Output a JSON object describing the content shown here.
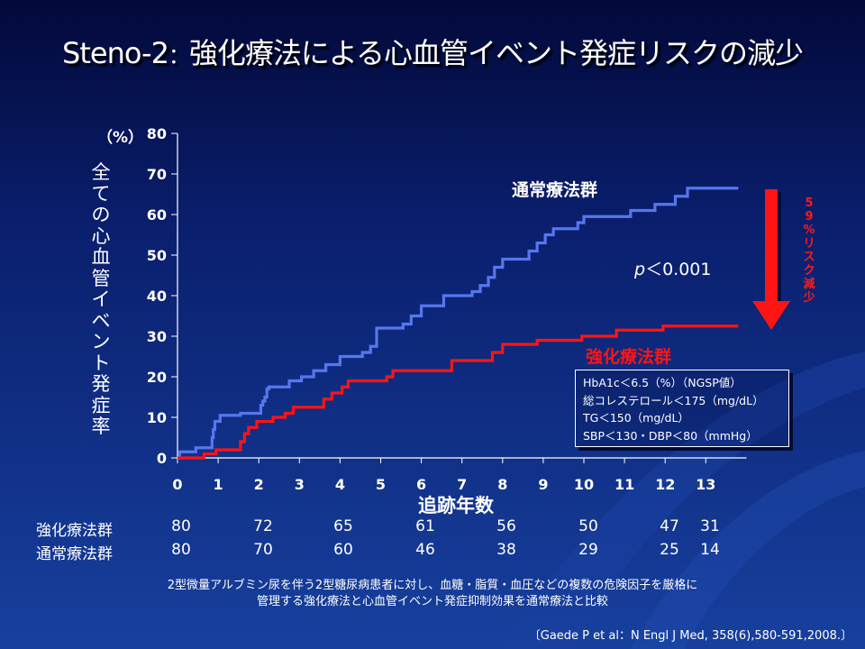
{
  "title": {
    "prefix": "Steno-2",
    "separator": "：",
    "text": "強化療法による心血管イベント発症リスクの減少"
  },
  "chart_data": {
    "type": "line",
    "step": true,
    "xlabel": "追跡年数",
    "ylabel": "全ての心血管イベント発症率",
    "yunit": "（%）",
    "xlim": [
      0,
      14
    ],
    "ylim": [
      0,
      80
    ],
    "x_ticks": [
      "0",
      "1",
      "2",
      "3",
      "4",
      "5",
      "6",
      "7",
      "8",
      "9",
      "10",
      "11",
      "12",
      "13"
    ],
    "y_ticks": [
      "0",
      "10",
      "20",
      "30",
      "40",
      "50",
      "60",
      "70",
      "80"
    ],
    "series": [
      {
        "name": "通常療法群",
        "color": "#5577ee",
        "points": [
          [
            0,
            0
          ],
          [
            0.05,
            1.5
          ],
          [
            0.4,
            1.5
          ],
          [
            0.45,
            2.5
          ],
          [
            0.8,
            2.5
          ],
          [
            0.85,
            5
          ],
          [
            0.88,
            7
          ],
          [
            0.92,
            9
          ],
          [
            1,
            9
          ],
          [
            1.05,
            10.5
          ],
          [
            1.5,
            10.5
          ],
          [
            1.55,
            11
          ],
          [
            2,
            11
          ],
          [
            2.05,
            13
          ],
          [
            2.1,
            14
          ],
          [
            2.15,
            15
          ],
          [
            2.2,
            17
          ],
          [
            2.25,
            17.5
          ],
          [
            2.7,
            17.5
          ],
          [
            2.75,
            19
          ],
          [
            3,
            19
          ],
          [
            3.05,
            20
          ],
          [
            3.3,
            20
          ],
          [
            3.35,
            21.5
          ],
          [
            3.6,
            21.5
          ],
          [
            3.65,
            23
          ],
          [
            3.95,
            23
          ],
          [
            4,
            25
          ],
          [
            4.5,
            25
          ],
          [
            4.55,
            26
          ],
          [
            4.7,
            26
          ],
          [
            4.75,
            27.5
          ],
          [
            4.85,
            27.5
          ],
          [
            4.9,
            32
          ],
          [
            5.5,
            32
          ],
          [
            5.55,
            33
          ],
          [
            5.7,
            33
          ],
          [
            5.75,
            35
          ],
          [
            5.95,
            35
          ],
          [
            6,
            37.5
          ],
          [
            6.5,
            37.5
          ],
          [
            6.55,
            40
          ],
          [
            7.2,
            40
          ],
          [
            7.25,
            41
          ],
          [
            7.4,
            41
          ],
          [
            7.45,
            42.5
          ],
          [
            7.6,
            42.5
          ],
          [
            7.65,
            44.5
          ],
          [
            7.75,
            44.5
          ],
          [
            7.8,
            47
          ],
          [
            7.95,
            47
          ],
          [
            8,
            49
          ],
          [
            8.6,
            49
          ],
          [
            8.65,
            51
          ],
          [
            8.8,
            51
          ],
          [
            8.85,
            53
          ],
          [
            9,
            53
          ],
          [
            9.05,
            55
          ],
          [
            9.2,
            55
          ],
          [
            9.25,
            56.5
          ],
          [
            9.8,
            56.5
          ],
          [
            9.85,
            58
          ],
          [
            9.95,
            58
          ],
          [
            10,
            59.5
          ],
          [
            11.1,
            59.5
          ],
          [
            11.15,
            61
          ],
          [
            11.7,
            61
          ],
          [
            11.75,
            62.5
          ],
          [
            12.2,
            62.5
          ],
          [
            12.25,
            64.5
          ],
          [
            12.5,
            64.5
          ],
          [
            12.55,
            66.5
          ],
          [
            13.8,
            66.5
          ]
        ]
      },
      {
        "name": "強化療法群",
        "color": "#ff1414",
        "points": [
          [
            0,
            0
          ],
          [
            0.6,
            0
          ],
          [
            0.65,
            1
          ],
          [
            0.9,
            1
          ],
          [
            0.95,
            2
          ],
          [
            1.5,
            2
          ],
          [
            1.55,
            4
          ],
          [
            1.65,
            6
          ],
          [
            1.75,
            7.5
          ],
          [
            1.9,
            7.5
          ],
          [
            1.95,
            9
          ],
          [
            2.3,
            9
          ],
          [
            2.35,
            10
          ],
          [
            2.6,
            10
          ],
          [
            2.65,
            11
          ],
          [
            2.8,
            11
          ],
          [
            2.85,
            12.5
          ],
          [
            3.55,
            12.5
          ],
          [
            3.6,
            14.5
          ],
          [
            3.75,
            14.5
          ],
          [
            3.8,
            16
          ],
          [
            4,
            16
          ],
          [
            4.05,
            17.5
          ],
          [
            4.15,
            17.5
          ],
          [
            4.2,
            19
          ],
          [
            5.1,
            19
          ],
          [
            5.15,
            20
          ],
          [
            5.25,
            20
          ],
          [
            5.3,
            21.5
          ],
          [
            6.7,
            21.5
          ],
          [
            6.75,
            24
          ],
          [
            7.7,
            24
          ],
          [
            7.75,
            26
          ],
          [
            7.95,
            26
          ],
          [
            8,
            28
          ],
          [
            8.8,
            28
          ],
          [
            8.85,
            29
          ],
          [
            9.9,
            29
          ],
          [
            9.95,
            30
          ],
          [
            10.75,
            30
          ],
          [
            10.8,
            31.5
          ],
          [
            11.9,
            31.5
          ],
          [
            11.95,
            32.5
          ],
          [
            13.8,
            32.5
          ]
        ]
      }
    ]
  },
  "labels": {
    "standard_group": "通常療法群",
    "intensive_group": "強化療法群",
    "p_value_italic": "p",
    "p_value_rest": "＜0.001",
    "risk_reduction": "59%リスク減少"
  },
  "targets": [
    "HbA1c＜6.5（%）（NGSP値）",
    "総コレステロール＜175（mg/dL）",
    "TG＜150（mg/dL）",
    "SBP＜130・DBP＜80（mmHg）"
  ],
  "at_risk": {
    "intensive": {
      "label": "強化療法群",
      "values": [
        "80",
        "72",
        "65",
        "61",
        "56",
        "50",
        "47",
        "31"
      ]
    },
    "standard": {
      "label": "通常療法群",
      "values": [
        "80",
        "70",
        "60",
        "46",
        "38",
        "29",
        "25",
        "14"
      ]
    }
  },
  "caption": {
    "line1": "2型微量アルブミン尿を伴う2型糖尿病患者に対し、血糖・脂質・血圧などの複数の危険因子を厳格に",
    "line2": "管理する強化療法と心血管イベント発症抑制効果を通常療法と比較"
  },
  "citation": "〔Gaede P et al：N Engl J Med, 358(6),580-591,2008.〕"
}
